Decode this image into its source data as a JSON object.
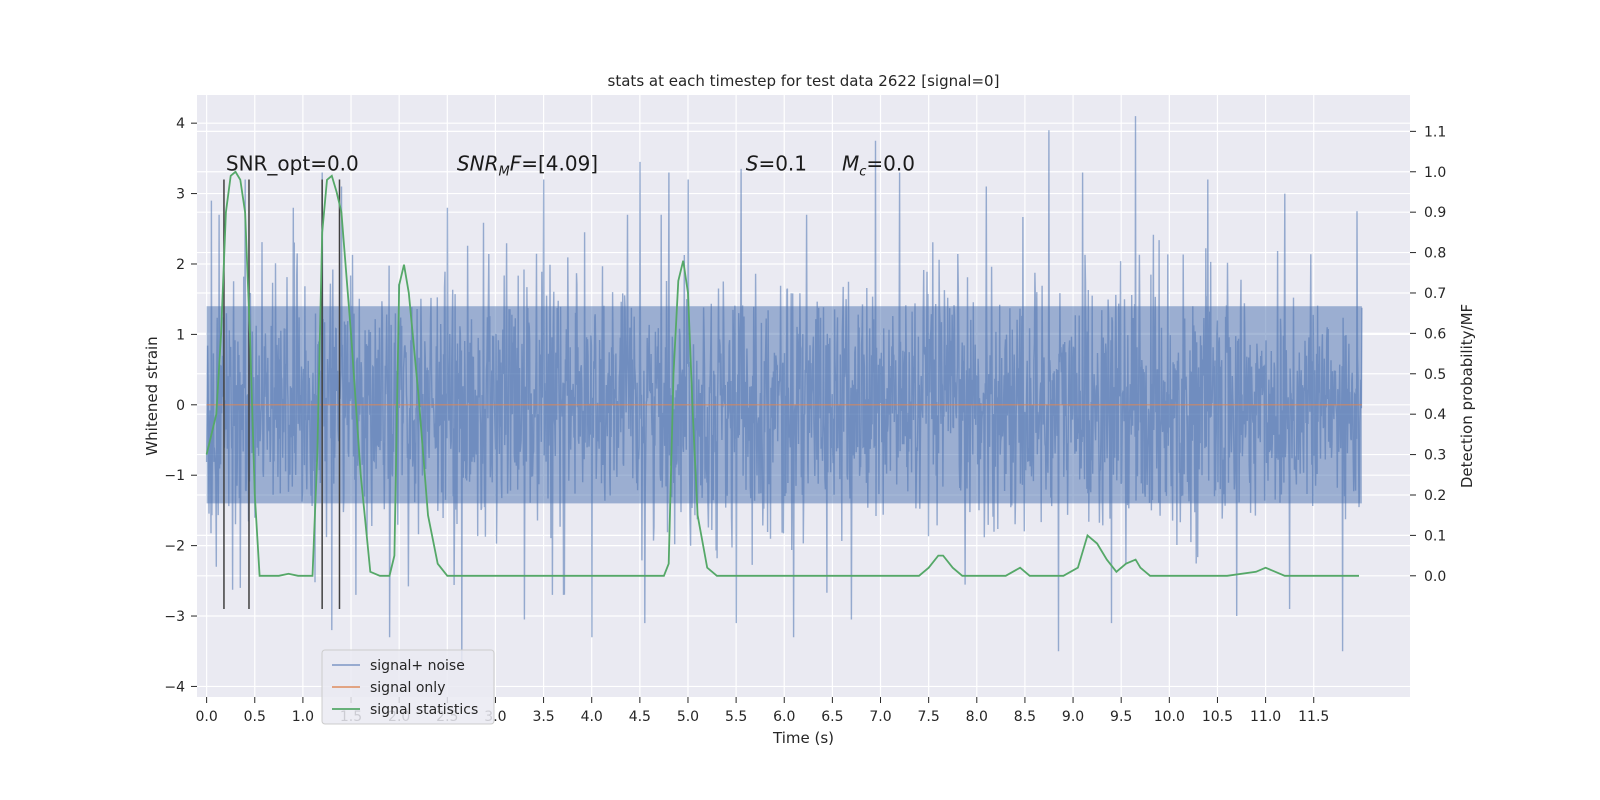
{
  "chart_data": {
    "type": "line",
    "title": "stats at each timestep for test data 2622 [signal=0]",
    "xlabel": "Time (s)",
    "ylabel": "Whitened strain",
    "y2label": "Detection probability/MF",
    "xlim": [
      -0.1,
      12.5
    ],
    "ylim": [
      -4.15,
      4.4
    ],
    "y2lim": [
      -0.3,
      1.19
    ],
    "xticks": [
      0.0,
      0.5,
      1.0,
      1.5,
      2.0,
      2.5,
      3.0,
      3.5,
      4.0,
      4.5,
      5.0,
      5.5,
      6.0,
      6.5,
      7.0,
      7.5,
      8.0,
      8.5,
      9.0,
      9.5,
      10.0,
      10.5,
      11.0,
      11.5
    ],
    "xtick_labels": [
      "0.0",
      "0.5",
      "1.0",
      "1.5",
      "2.0",
      "2.5",
      "3.0",
      "3.5",
      "4.0",
      "4.5",
      "5.0",
      "5.5",
      "6.0",
      "6.5",
      "7.0",
      "7.5",
      "8.0",
      "8.5",
      "9.0",
      "9.5",
      "10.0",
      "10.5",
      "11.0",
      "11.5"
    ],
    "yticks": [
      -4,
      -3,
      -2,
      -1,
      0,
      1,
      2,
      3,
      4
    ],
    "ytick_labels": [
      "−4",
      "−3",
      "−2",
      "−1",
      "0",
      "1",
      "2",
      "3",
      "4"
    ],
    "y2ticks": [
      0.0,
      0.1,
      0.2,
      0.3,
      0.4,
      0.5,
      0.6,
      0.7,
      0.8,
      0.9,
      1.0,
      1.1
    ],
    "y2tick_labels": [
      "0.0",
      "0.1",
      "0.2",
      "0.3",
      "0.4",
      "0.5",
      "0.6",
      "0.7",
      "0.8",
      "0.9",
      "1.0",
      "1.1"
    ],
    "grid": true,
    "legend_position": "lower-left",
    "legend": [
      "signal+ noise",
      "signal only",
      "signal statistics"
    ],
    "annotations": [
      {
        "prefix": "SNR_opt=0.0",
        "sub": "",
        "suffix": "",
        "x": 0.2,
        "y": 3.3,
        "italic": false
      },
      {
        "prefix": "SNR",
        "sub": "M",
        "suffix": "F=[4.09]",
        "x": 2.6,
        "y": 3.3,
        "italic": true
      },
      {
        "prefix": "S",
        "sub": "",
        "suffix": "=0.1",
        "x": 5.6,
        "y": 3.3,
        "italic": true
      },
      {
        "prefix": "M",
        "sub": "c",
        "suffix": "=0.0",
        "x": 6.6,
        "y": 3.3,
        "italic": true
      }
    ],
    "noise_series": {
      "name": "signal+ noise",
      "color": "#4c72b0",
      "t_start": 0.0,
      "t_end": 12.0,
      "core_amplitude": 1.4,
      "peaks": [
        {
          "x": 0.05,
          "y": 2.9
        },
        {
          "x": 0.4,
          "y": 3.2
        },
        {
          "x": 0.9,
          "y": 2.8
        },
        {
          "x": 1.2,
          "y": 3.3
        },
        {
          "x": 1.4,
          "y": 3.1
        },
        {
          "x": 2.5,
          "y": 2.8
        },
        {
          "x": 3.5,
          "y": 3.2
        },
        {
          "x": 4.5,
          "y": 3.45
        },
        {
          "x": 4.8,
          "y": 3.3
        },
        {
          "x": 5.0,
          "y": 3.2
        },
        {
          "x": 5.55,
          "y": 3.35
        },
        {
          "x": 6.95,
          "y": 3.75
        },
        {
          "x": 7.2,
          "y": 3.3
        },
        {
          "x": 8.1,
          "y": 3.1
        },
        {
          "x": 8.75,
          "y": 3.9
        },
        {
          "x": 9.1,
          "y": 3.3
        },
        {
          "x": 9.65,
          "y": 4.1
        },
        {
          "x": 10.4,
          "y": 3.2
        },
        {
          "x": 11.2,
          "y": 3.0
        },
        {
          "x": 11.95,
          "y": 2.75
        }
      ],
      "troughs": [
        {
          "x": 0.1,
          "y": -2.3
        },
        {
          "x": 0.35,
          "y": -2.6
        },
        {
          "x": 1.3,
          "y": -3.2
        },
        {
          "x": 1.9,
          "y": -3.3
        },
        {
          "x": 2.65,
          "y": -3.75
        },
        {
          "x": 3.3,
          "y": -3.05
        },
        {
          "x": 4.0,
          "y": -3.3
        },
        {
          "x": 4.55,
          "y": -3.1
        },
        {
          "x": 5.5,
          "y": -3.1
        },
        {
          "x": 6.1,
          "y": -3.3
        },
        {
          "x": 6.7,
          "y": -3.05
        },
        {
          "x": 8.85,
          "y": -3.5
        },
        {
          "x": 9.4,
          "y": -3.1
        },
        {
          "x": 10.7,
          "y": -3.0
        },
        {
          "x": 11.25,
          "y": -2.9
        },
        {
          "x": 11.8,
          "y": -3.5
        }
      ]
    },
    "signal_series": {
      "name": "signal only",
      "color": "#dd8452",
      "x": [
        0.0,
        12.0
      ],
      "y": [
        0.0,
        0.0
      ]
    },
    "stats_series": {
      "name": "signal statistics",
      "color": "#55a868",
      "axis": "right",
      "x": [
        0.0,
        0.1,
        0.15,
        0.2,
        0.25,
        0.3,
        0.35,
        0.4,
        0.45,
        0.5,
        0.55,
        0.6,
        0.65,
        0.75,
        0.85,
        0.95,
        1.05,
        1.1,
        1.15,
        1.2,
        1.25,
        1.3,
        1.35,
        1.4,
        1.5,
        1.6,
        1.7,
        1.8,
        1.9,
        1.95,
        2.0,
        2.05,
        2.1,
        2.2,
        2.3,
        2.4,
        2.5,
        2.6,
        2.8,
        3.0,
        3.5,
        4.0,
        4.5,
        4.75,
        4.8,
        4.85,
        4.9,
        4.95,
        5.0,
        5.05,
        5.1,
        5.2,
        5.3,
        5.4,
        5.5,
        6.0,
        6.5,
        7.0,
        7.4,
        7.5,
        7.6,
        7.65,
        7.75,
        7.85,
        8.0,
        8.3,
        8.45,
        8.55,
        8.7,
        8.9,
        9.05,
        9.15,
        9.25,
        9.35,
        9.45,
        9.55,
        9.65,
        9.7,
        9.8,
        9.9,
        10.0,
        10.3,
        10.6,
        10.9,
        11.0,
        11.2,
        11.5,
        11.97
      ],
      "y": [
        0.3,
        0.4,
        0.6,
        0.9,
        0.99,
        1.0,
        0.98,
        0.9,
        0.6,
        0.2,
        0.0,
        0.0,
        0.0,
        0.0,
        0.005,
        0.0,
        0.0,
        0.0,
        0.3,
        0.85,
        0.98,
        0.99,
        0.95,
        0.9,
        0.6,
        0.25,
        0.01,
        0.0,
        0.0,
        0.05,
        0.72,
        0.77,
        0.7,
        0.45,
        0.15,
        0.03,
        0.0,
        0.0,
        0.0,
        0.0,
        0.0,
        0.0,
        0.0,
        0.0,
        0.03,
        0.5,
        0.73,
        0.78,
        0.7,
        0.4,
        0.15,
        0.02,
        0.0,
        0.0,
        0.0,
        0.0,
        0.0,
        0.0,
        0.0,
        0.02,
        0.05,
        0.05,
        0.02,
        0.0,
        0.0,
        0.0,
        0.02,
        0.0,
        0.0,
        0.0,
        0.02,
        0.1,
        0.08,
        0.04,
        0.01,
        0.03,
        0.04,
        0.02,
        0.0,
        0.0,
        0.0,
        0.0,
        0.0,
        0.01,
        0.02,
        0.0,
        0.0,
        0.0
      ]
    },
    "vertical_lines": {
      "color": "#404040",
      "x": [
        0.18,
        0.44,
        1.2,
        1.38
      ],
      "y_range": [
        -2.9,
        3.2
      ]
    }
  }
}
